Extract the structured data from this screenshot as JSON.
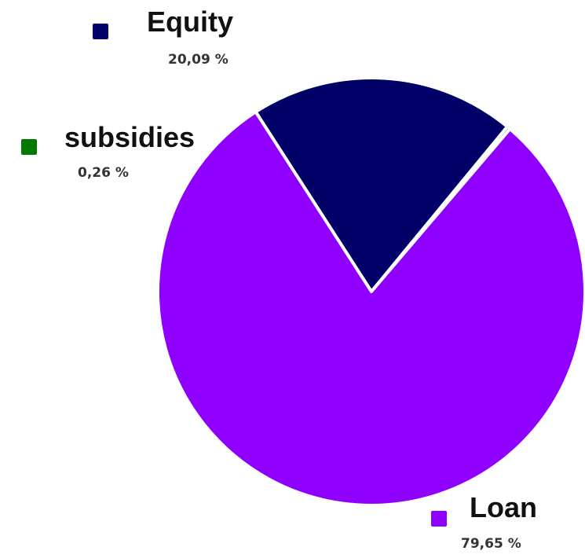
{
  "chart_data": {
    "type": "pie",
    "slices": [
      {
        "label": "Equity",
        "value": 20.09,
        "display": "20,09 %",
        "color": "#000066"
      },
      {
        "label": "subsidies",
        "value": 0.26,
        "display": "0,26 %",
        "color": "#007A00"
      },
      {
        "label": "Loan",
        "value": 79.65,
        "display": "79,65 %",
        "color": "#8F00FF"
      }
    ],
    "legend": "labels placed next to slices"
  }
}
